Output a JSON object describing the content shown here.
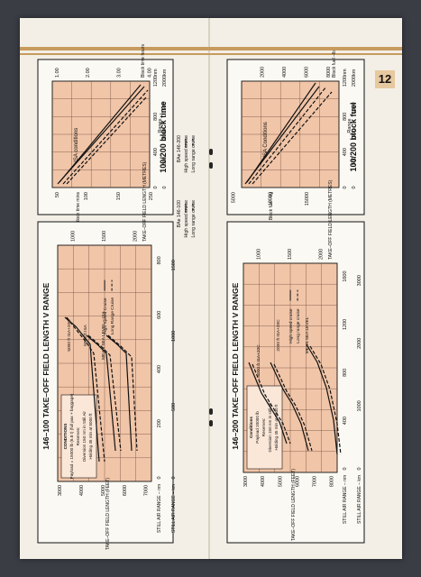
{
  "page_number": "12",
  "panels": {
    "left_top": {
      "title": "100/200 block time",
      "block_time_label": "Block time hours",
      "block_time_ticks": [
        "1.00",
        "2.00",
        "3.00",
        "4.00"
      ],
      "minutes_label": "Block time mins",
      "minutes_ticks": [
        "50",
        "100",
        "150",
        "250"
      ],
      "range_label": "Range",
      "range_nm_unit": "nm",
      "range_km_unit": "km",
      "range_nm_ticks": [
        "0",
        "400",
        "800",
        "1200"
      ],
      "range_km_ticks": [
        "0",
        "500",
        "1000",
        "1500",
        "2000"
      ],
      "conditions_label": "ISA conditions",
      "legend": [
        {
          "text": "BAe 146-100",
          "style": "header"
        },
        {
          "text": "High speed cruise",
          "style": "solid"
        },
        {
          "text": "Long range cruise",
          "style": "dash"
        },
        {
          "text": "BAe 146-200",
          "style": "header"
        },
        {
          "text": "High speed cruise",
          "style": "solid"
        },
        {
          "text": "Long range cruise",
          "style": "dash"
        }
      ]
    },
    "right_top": {
      "title": "100/200 block fuel",
      "block_fuel_label": "Block fuel –kg",
      "block_fuel_ticks": [
        "5000",
        "10000",
        "15000"
      ],
      "block_fuel_lb_label": "Block fuel –lb",
      "block_fuel_lb_ticks": [
        "2000",
        "4000",
        "6000",
        "8000"
      ],
      "range_label": "Range",
      "range_nm_unit": "nm",
      "range_km_unit": "km",
      "range_nm_ticks": [
        "0",
        "400",
        "800",
        "1200"
      ],
      "range_km_ticks": [
        "0",
        "500",
        "1000",
        "1500",
        "2000"
      ],
      "conditions_label": "ISA Conditions"
    },
    "left_bottom": {
      "title": "146–100  TAKE–OFF FIELD LENGTH V RANGE",
      "y_label_feet": "TAKE–OFF FIELD LENGTH (FEET)",
      "y_ticks_feet": [
        "3000",
        "4000",
        "5000",
        "6000",
        "7000"
      ],
      "y_label_metres": "TAKE–OFF FIELD LENGTH (METRES)",
      "y_ticks_metres": [
        "1000",
        "1500",
        "2000"
      ],
      "x_label_nm": "STILL AIR RANGE – nm",
      "x_label_km": "STILL AIR RANGE – km",
      "x_ticks_nm": [
        "0",
        "200",
        "400",
        "600",
        "800"
      ],
      "x_ticks_km": [
        "0",
        "500",
        "1000",
        "1500"
      ],
      "conditions_box": [
        "CONDITIONS",
        "Payload = 15000 lb (6.8 t) (full pax + baggage)",
        "Reserves:",
        "Diversion 150 nm in Still Air",
        "Holding 45 min at 5000 ft"
      ],
      "cruise_legend": [
        "High Speed Cruise",
        "Long Range Cruise"
      ],
      "curve_labels": [
        "5000 ft ISA+20C",
        "5000 ft ISA",
        "MEAN SEA LEVEL – ISA"
      ]
    },
    "right_bottom": {
      "title": "146–200  TAKE–OFF FIELD LENGTH V RANGE",
      "y_label_feet": "TAKE–OFF FIELD LENGTH (FEET)",
      "y_ticks_feet": [
        "3000",
        "4000",
        "5000",
        "6000",
        "7000",
        "8000"
      ],
      "y_label_metres": "TAKE–OFF FIELD LENGTH (METRES)",
      "y_ticks_metres": [
        "1000",
        "1500",
        "2000"
      ],
      "x_label_nm": "STILL AIR RANGE – nm",
      "x_label_km": "STILL AIR RANGE – km",
      "x_ticks_nm": [
        "0",
        "400",
        "800",
        "1200",
        "1600"
      ],
      "x_ticks_km": [
        "0",
        "1000",
        "2000",
        "3000"
      ],
      "conditions_box": [
        "Conditions",
        "Payload 20000 lb",
        "Reserves:",
        "Diversion 150 nm in still air",
        "Holding 45 min at 5000 ft"
      ],
      "cruise_legend": [
        "High speed cruise",
        "Long range cruise"
      ],
      "curve_labels": [
        "5000 ft ISA+20C",
        "2000 ft ISA+20C",
        "MEAN SEA LEVEL"
      ]
    }
  }
}
